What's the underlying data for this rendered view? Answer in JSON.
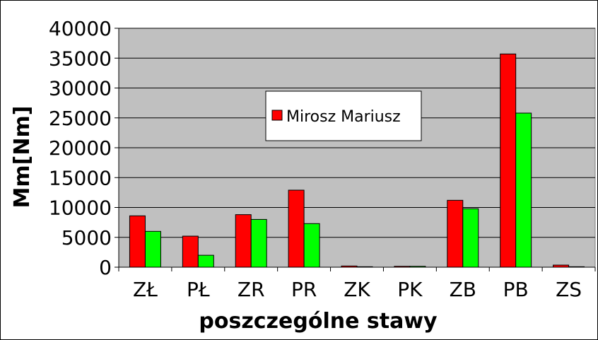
{
  "chart_data": {
    "type": "bar",
    "title": "",
    "xlabel": "poszczególne stawy",
    "ylabel": "Mm[Nm]",
    "categories": [
      "ZŁ",
      "PŁ",
      "ZR",
      "PR",
      "ZK",
      "PK",
      "ZB",
      "PB",
      "ZS"
    ],
    "ylim": [
      0,
      40000
    ],
    "yticks": [
      0,
      5000,
      10000,
      15000,
      20000,
      25000,
      30000,
      35000,
      40000
    ],
    "grid": true,
    "legend": {
      "position": "top-center",
      "entries": [
        "Mirosz Mariusz"
      ]
    },
    "series": [
      {
        "name": "Mirosz Mariusz",
        "color": "#ff0000",
        "values": [
          8600,
          5200,
          8800,
          12900,
          200,
          150,
          11200,
          35700,
          350
        ]
      },
      {
        "color": "#00ff00",
        "values": [
          6000,
          2000,
          8000,
          7300,
          80,
          150,
          9800,
          25800,
          80
        ]
      }
    ],
    "colors": {
      "plot_background": "#c0c0c0",
      "gridline": "#000000"
    }
  }
}
